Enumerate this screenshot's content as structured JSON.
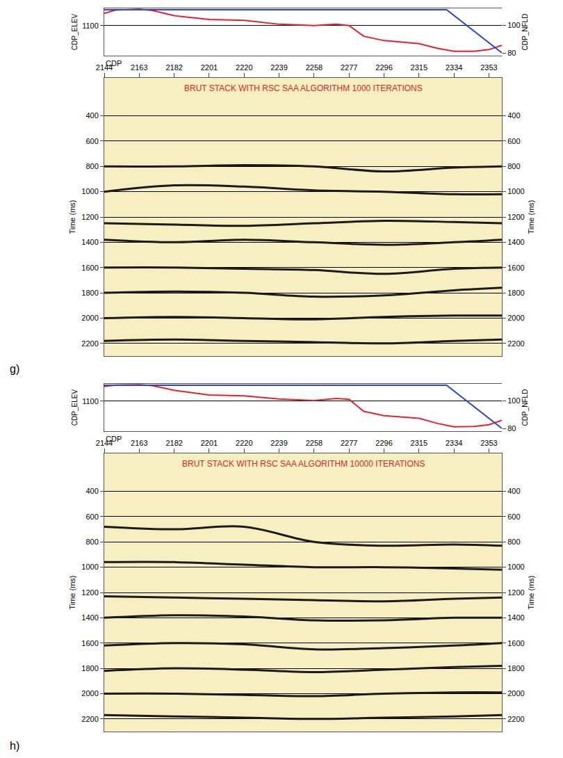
{
  "chart_data": [
    {
      "type": "seismic_section",
      "label": "g)",
      "title": "BRUT STACK WITH RSC SAA ALGORITHM 1000 ITERATIONS",
      "header": {
        "type": "line",
        "x": [
          2144,
          2150,
          2163,
          2170,
          2182,
          2201,
          2220,
          2239,
          2258,
          2270,
          2277,
          2285,
          2296,
          2315,
          2325,
          2334,
          2345,
          2353,
          2360
        ],
        "xlim": [
          2144,
          2360
        ],
        "ylabel": "CDP_ELEV",
        "ylim": [
          1030,
          1140
        ],
        "yticks": [
          1100
        ],
        "y2label": "CDP_NFLD",
        "y2lim": [
          78,
          112
        ],
        "y2ticks": [
          80,
          100
        ],
        "grid": true,
        "series": [
          {
            "color": "#e8202a",
            "values": [
              1128,
              1136,
              1138,
              1135,
              1123,
              1114,
              1112,
              1103,
              1100,
              1103,
              1100,
              1075,
              1065,
              1058,
              1047,
              1040,
              1040,
              1044,
              1054
            ]
          },
          {
            "color": "#2742d6",
            "axis": "y2",
            "x": [
              2144,
              2330,
              2360
            ],
            "values": [
              111,
              111,
              80
            ]
          }
        ]
      },
      "section": {
        "type": "line",
        "xlabel": "CDP",
        "x": [
          2144,
          2182,
          2220,
          2258,
          2296,
          2334,
          2360
        ],
        "xlim": [
          2144,
          2360
        ],
        "xticks": [
          2144,
          2163,
          2182,
          2201,
          2220,
          2239,
          2258,
          2277,
          2296,
          2315,
          2334,
          2353
        ],
        "ylabel": "Time (ms)",
        "ylim": [
          2300,
          100
        ],
        "yticks": [
          400,
          600,
          800,
          1000,
          1200,
          1400,
          1600,
          1800,
          2000,
          2200
        ],
        "grid": true,
        "series": [
          {
            "color": "#1a1a1a",
            "values": [
              800,
              800,
              790,
              800,
              840,
              810,
              800
            ]
          },
          {
            "color": "#1a1a1a",
            "values": [
              1000,
              950,
              960,
              990,
              1000,
              1020,
              1020
            ]
          },
          {
            "color": "#1a1a1a",
            "values": [
              1250,
              1260,
              1270,
              1250,
              1230,
              1240,
              1250
            ]
          },
          {
            "color": "#1a1a1a",
            "values": [
              1380,
              1400,
              1380,
              1400,
              1420,
              1400,
              1380
            ]
          },
          {
            "color": "#1a1a1a",
            "values": [
              1600,
              1600,
              1610,
              1620,
              1650,
              1610,
              1600
            ]
          },
          {
            "color": "#1a1a1a",
            "values": [
              1800,
              1790,
              1800,
              1830,
              1820,
              1780,
              1760
            ]
          },
          {
            "color": "#1a1a1a",
            "values": [
              2000,
              1990,
              2000,
              2010,
              1990,
              1980,
              1980
            ]
          },
          {
            "color": "#1a1a1a",
            "values": [
              2180,
              2170,
              2180,
              2190,
              2200,
              2180,
              2170
            ]
          }
        ]
      }
    },
    {
      "type": "seismic_section",
      "label": "h)",
      "title": "BRUT STACK WITH RSC SAA ALGORITHM 10000 ITERATIONS",
      "header": {
        "type": "line",
        "x": [
          2144,
          2150,
          2163,
          2170,
          2182,
          2201,
          2220,
          2239,
          2258,
          2270,
          2277,
          2285,
          2296,
          2315,
          2325,
          2334,
          2345,
          2353,
          2360
        ],
        "xlim": [
          2144,
          2360
        ],
        "ylabel": "CDP_ELEV",
        "ylim": [
          1030,
          1140
        ],
        "yticks": [
          1100
        ],
        "y2label": "CDP_NFLD",
        "y2lim": [
          78,
          112
        ],
        "y2ticks": [
          80,
          100
        ],
        "grid": true,
        "series": [
          {
            "color": "#e8202a",
            "values": [
              1134,
              1137,
              1138,
              1136,
              1125,
              1114,
              1112,
              1105,
              1101,
              1106,
              1104,
              1076,
              1066,
              1060,
              1048,
              1040,
              1041,
              1045,
              1055
            ]
          },
          {
            "color": "#2742d6",
            "axis": "y2",
            "x": [
              2144,
              2330,
              2360
            ],
            "values": [
              111,
              111,
              80
            ]
          }
        ]
      },
      "section": {
        "type": "line",
        "xlabel": "CDP",
        "x": [
          2144,
          2182,
          2220,
          2258,
          2296,
          2334,
          2360
        ],
        "xlim": [
          2144,
          2360
        ],
        "xticks": [
          2144,
          2163,
          2182,
          2201,
          2220,
          2239,
          2258,
          2277,
          2296,
          2315,
          2334,
          2353
        ],
        "ylabel": "Time (ms)",
        "ylim": [
          2300,
          100
        ],
        "yticks": [
          400,
          600,
          800,
          1000,
          1200,
          1400,
          1600,
          1800,
          2000,
          2200
        ],
        "grid": true,
        "series": [
          {
            "color": "#1a1a1a",
            "values": [
              680,
              700,
              680,
              800,
              830,
              820,
              830
            ]
          },
          {
            "color": "#1a1a1a",
            "values": [
              960,
              960,
              980,
              1000,
              1000,
              1010,
              1020
            ]
          },
          {
            "color": "#1a1a1a",
            "values": [
              1230,
              1240,
              1250,
              1260,
              1270,
              1250,
              1240
            ]
          },
          {
            "color": "#1a1a1a",
            "values": [
              1400,
              1380,
              1390,
              1420,
              1420,
              1400,
              1400
            ]
          },
          {
            "color": "#1a1a1a",
            "values": [
              1620,
              1600,
              1610,
              1650,
              1640,
              1620,
              1600
            ]
          },
          {
            "color": "#1a1a1a",
            "values": [
              1820,
              1800,
              1810,
              1830,
              1810,
              1790,
              1780
            ]
          },
          {
            "color": "#1a1a1a",
            "values": [
              2000,
              2000,
              2010,
              2020,
              2000,
              1990,
              1990
            ]
          },
          {
            "color": "#1a1a1a",
            "values": [
              2170,
              2180,
              2190,
              2200,
              2190,
              2180,
              2170
            ]
          }
        ]
      }
    }
  ]
}
